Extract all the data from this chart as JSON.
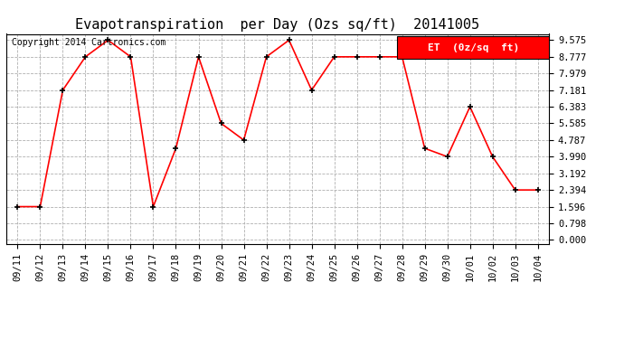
{
  "title": "Evapotranspiration  per Day (Ozs sq/ft)  20141005",
  "copyright": "Copyright 2014 Cartronics.com",
  "legend_label": "ET  (0z/sq  ft)",
  "x_labels": [
    "09/11",
    "09/12",
    "09/13",
    "09/14",
    "09/15",
    "09/16",
    "09/17",
    "09/18",
    "09/19",
    "09/20",
    "09/21",
    "09/22",
    "09/23",
    "09/24",
    "09/25",
    "09/26",
    "09/27",
    "09/28",
    "09/29",
    "09/30",
    "10/01",
    "10/02",
    "10/03",
    "10/04"
  ],
  "y_values": [
    1.596,
    1.596,
    7.181,
    8.777,
    9.575,
    8.777,
    1.596,
    4.39,
    8.777,
    5.585,
    4.787,
    8.777,
    9.575,
    7.181,
    8.777,
    8.777,
    8.777,
    8.777,
    4.39,
    3.99,
    6.383,
    3.99,
    2.394,
    2.394
  ],
  "y_ticks": [
    0.0,
    0.798,
    1.596,
    2.394,
    3.192,
    3.99,
    4.787,
    5.585,
    6.383,
    7.181,
    7.979,
    8.777,
    9.575
  ],
  "line_color": "red",
  "marker_color": "black",
  "bg_color": "#ffffff",
  "plot_bg_color": "#ffffff",
  "grid_color": "#b0b0b0",
  "legend_bg": "red",
  "legend_text_color": "white",
  "title_fontsize": 11,
  "copyright_fontsize": 7,
  "tick_fontsize": 7.5,
  "legend_fontsize": 8
}
